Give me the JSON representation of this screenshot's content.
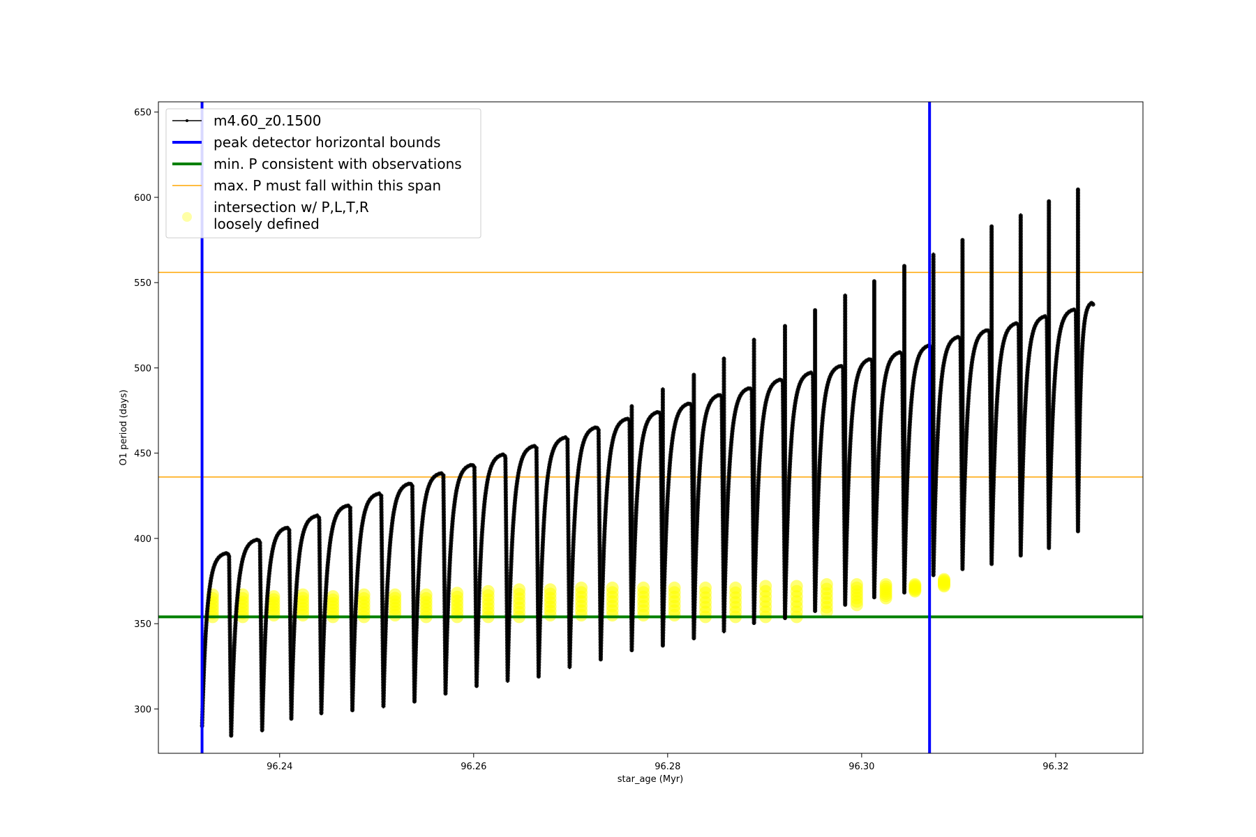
{
  "chart_data": {
    "type": "line",
    "title": "",
    "xlabel": "star_age (Myr)",
    "ylabel": "O1 period (days)",
    "xlim": [
      96.2275,
      96.329
    ],
    "ylim": [
      274,
      656
    ],
    "x_ticks": [
      96.24,
      96.26,
      96.28,
      96.3,
      96.32
    ],
    "x_tick_labels": [
      "96.24",
      "96.26",
      "96.28",
      "96.30",
      "96.32"
    ],
    "y_ticks": [
      300,
      350,
      400,
      450,
      500,
      550,
      600,
      650
    ],
    "y_tick_labels": [
      "300",
      "350",
      "400",
      "450",
      "500",
      "550",
      "600",
      "650"
    ],
    "grid": false,
    "legend_position": "top-left",
    "colors": {
      "series": "#000000",
      "bounds": "#0000ff",
      "min_p": "#008000",
      "max_p": "#ffa500",
      "intersection": "#ffff00"
    },
    "series": [
      {
        "name": "m4.60_z0.1500",
        "kind": "cycles",
        "x_start": [
          96.232,
          96.235,
          96.2382,
          96.2412,
          96.2443,
          96.2475,
          96.2507,
          96.2539,
          96.2571,
          96.2603,
          96.2635,
          96.2667,
          96.2699,
          96.2731,
          96.2763,
          96.2795,
          96.2827,
          96.2858,
          96.2889,
          96.2921,
          96.2952,
          96.2983,
          96.3013,
          96.3044,
          96.3074,
          96.3104,
          96.3134,
          96.3164,
          96.3193,
          96.3223
        ],
        "x_end": [
          96.235,
          96.2382,
          96.2412,
          96.2443,
          96.2475,
          96.2507,
          96.2539,
          96.2571,
          96.2603,
          96.2635,
          96.2667,
          96.2699,
          96.2731,
          96.2763,
          96.2795,
          96.2827,
          96.2858,
          96.2889,
          96.2921,
          96.2952,
          96.2983,
          96.3013,
          96.3044,
          96.3074,
          96.3104,
          96.3134,
          96.3164,
          96.3193,
          96.3223,
          96.324
        ],
        "trough": [
          290,
          284,
          287,
          294,
          297,
          299,
          301,
          304,
          309,
          313,
          316,
          319,
          324,
          329,
          334,
          337,
          341,
          345,
          350,
          353,
          357,
          361,
          365,
          368,
          378,
          382,
          385,
          390,
          394,
          404
        ],
        "plateau": [
          392,
          400,
          407,
          414,
          420,
          427,
          433,
          439,
          444,
          450,
          455,
          460,
          466,
          471,
          475,
          480,
          485,
          489,
          494,
          498,
          502,
          506,
          510,
          514,
          519,
          523,
          527,
          531,
          535,
          539
        ],
        "spike": [
          null,
          null,
          null,
          null,
          null,
          null,
          null,
          null,
          null,
          null,
          null,
          null,
          null,
          null,
          478,
          488,
          496,
          506,
          517,
          525,
          534,
          543,
          551,
          560,
          567,
          575,
          583,
          590,
          598,
          605
        ]
      },
      {
        "name": "peak detector horizontal bounds",
        "kind": "vlines",
        "x": [
          96.232,
          96.307
        ]
      },
      {
        "name": "min. P consistent with observations",
        "kind": "hline",
        "y": 354
      },
      {
        "name": "max. P must fall within this span",
        "kind": "hlines",
        "y": [
          436,
          556
        ]
      },
      {
        "name": "intersection w/ P,L,T,R\nloosely defined",
        "kind": "scatter",
        "x": [
          96.2331,
          96.2362,
          96.2394,
          96.2424,
          96.2455,
          96.2487,
          96.2519,
          96.2551,
          96.2583,
          96.2615,
          96.2647,
          96.2679,
          96.2711,
          96.2743,
          96.2775,
          96.2807,
          96.2839,
          96.287,
          96.2901,
          96.2933,
          96.2964,
          96.2995,
          96.3025,
          96.3055,
          96.3085
        ],
        "y_low": [
          354,
          354,
          355,
          355,
          354,
          354,
          355,
          354,
          354,
          354,
          354,
          355,
          355,
          355,
          355,
          355,
          354,
          354,
          354,
          354,
          357,
          361,
          365,
          369,
          372
        ],
        "y_high": [
          367,
          367,
          366,
          367,
          366,
          367,
          367,
          367,
          368,
          369,
          370,
          370,
          371,
          371,
          371,
          371,
          371,
          371,
          372,
          372,
          373,
          373,
          373,
          373,
          376
        ]
      }
    ]
  },
  "legend": {
    "items": [
      {
        "label": "m4.60_z0.1500",
        "color": "#000000",
        "symbol": "line-marker"
      },
      {
        "label": "peak detector horizontal bounds",
        "color": "#0000ff",
        "symbol": "thick-line"
      },
      {
        "label": "min. P consistent with observations",
        "color": "#008000",
        "symbol": "thick-line"
      },
      {
        "label": "max. P must fall within this span",
        "color": "#ffa500",
        "symbol": "thin-line"
      },
      {
        "label": "intersection w/ P,L,T,R",
        "label2": "loosely defined",
        "color": "#ffff00",
        "symbol": "dot"
      }
    ]
  }
}
